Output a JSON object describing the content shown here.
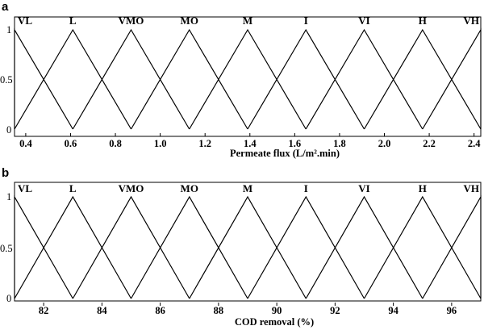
{
  "chart_data": [
    {
      "type": "line",
      "panel": "a",
      "xlabel": "Permeate flux (L/m².min)",
      "ylabel": "",
      "xlim": [
        0.35,
        2.43
      ],
      "ylim": [
        0,
        1
      ],
      "xticks": [
        "0.4",
        "0.6",
        "0.8",
        "1.0",
        "1.2",
        "1.4",
        "1.6",
        "1.8",
        "2.0",
        "2.2",
        "2.4"
      ],
      "yticks": [
        "0",
        "0.5",
        "1"
      ],
      "grid": false,
      "series": [
        {
          "name": "VL",
          "x": [
            0.35,
            0.35,
            0.61
          ],
          "y": [
            0,
            1,
            0
          ]
        },
        {
          "name": "L",
          "x": [
            0.35,
            0.61,
            0.87
          ],
          "y": [
            0,
            1,
            0
          ]
        },
        {
          "name": "VMO",
          "x": [
            0.61,
            0.87,
            1.13
          ],
          "y": [
            0,
            1,
            0
          ]
        },
        {
          "name": "MO",
          "x": [
            0.87,
            1.13,
            1.39
          ],
          "y": [
            0,
            1,
            0
          ]
        },
        {
          "name": "M",
          "x": [
            1.13,
            1.39,
            1.65
          ],
          "y": [
            0,
            1,
            0
          ]
        },
        {
          "name": "I",
          "x": [
            1.39,
            1.65,
            1.91
          ],
          "y": [
            0,
            1,
            0
          ]
        },
        {
          "name": "VI",
          "x": [
            1.65,
            1.91,
            2.17
          ],
          "y": [
            0,
            1,
            0
          ]
        },
        {
          "name": "H",
          "x": [
            1.91,
            2.17,
            2.43
          ],
          "y": [
            0,
            1,
            0
          ]
        },
        {
          "name": "VH",
          "x": [
            2.17,
            2.43,
            2.43
          ],
          "y": [
            0,
            1,
            0
          ]
        }
      ]
    },
    {
      "type": "line",
      "panel": "b",
      "xlabel": "COD removal (%)",
      "ylabel": "",
      "xlim": [
        81,
        97
      ],
      "ylim": [
        0,
        1
      ],
      "xticks": [
        "82",
        "84",
        "86",
        "88",
        "90",
        "92",
        "94",
        "96"
      ],
      "yticks": [
        "0",
        "0.5",
        "1"
      ],
      "grid": false,
      "series": [
        {
          "name": "VL",
          "x": [
            81,
            81,
            83
          ],
          "y": [
            0,
            1,
            0
          ]
        },
        {
          "name": "L",
          "x": [
            81,
            83,
            85
          ],
          "y": [
            0,
            1,
            0
          ]
        },
        {
          "name": "VMO",
          "x": [
            83,
            85,
            87
          ],
          "y": [
            0,
            1,
            0
          ]
        },
        {
          "name": "MO",
          "x": [
            85,
            87,
            89
          ],
          "y": [
            0,
            1,
            0
          ]
        },
        {
          "name": "M",
          "x": [
            87,
            89,
            91
          ],
          "y": [
            0,
            1,
            0
          ]
        },
        {
          "name": "I",
          "x": [
            89,
            91,
            93
          ],
          "y": [
            0,
            1,
            0
          ]
        },
        {
          "name": "VI",
          "x": [
            91,
            93,
            95
          ],
          "y": [
            0,
            1,
            0
          ]
        },
        {
          "name": "H",
          "x": [
            93,
            95,
            97
          ],
          "y": [
            0,
            1,
            0
          ]
        },
        {
          "name": "VH",
          "x": [
            95,
            97,
            97
          ],
          "y": [
            0,
            1,
            0
          ]
        }
      ]
    }
  ],
  "colors": {
    "line": "#000000",
    "axis": "#000000",
    "background": "#ffffff"
  }
}
